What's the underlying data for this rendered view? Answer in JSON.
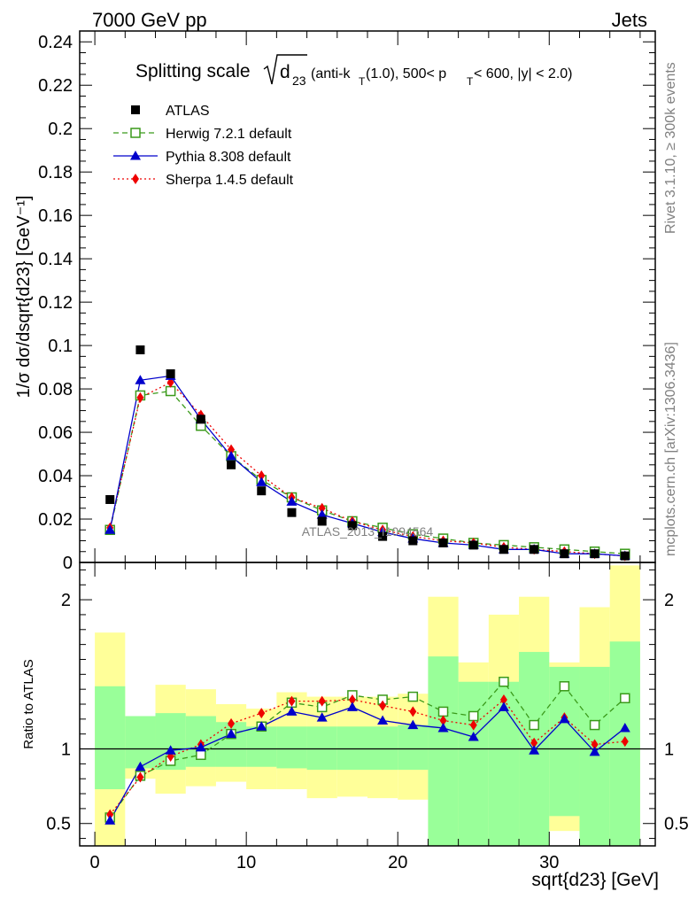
{
  "header": {
    "left": "7000 GeV pp",
    "right": "Jets"
  },
  "side_labels": {
    "rivet": "Rivet 3.1.10, ≥ 300k events",
    "mcplots": "mcplots.cern.ch [arXiv:1306.3436]"
  },
  "watermark": "ATLAS_2013_I1094564",
  "chart_data": [
    {
      "type": "line",
      "panel": "main",
      "title_prefix": "Splitting scale",
      "title_sqrt": "d",
      "title_sqrt_sub": "23",
      "title_rest": "(anti-k",
      "title_sub_T": "T",
      "title_rest2": "(1.0), 500< p",
      "title_rest3": " < 600, |y| < 2.0)",
      "ylabel": "1/σ dσ/dsqrt{d23} [GeV⁻¹]",
      "xlabel": "sqrt{d23} [GeV]",
      "xlim": [
        -1,
        37
      ],
      "ylim": [
        0,
        0.245
      ],
      "yticks": [
        "0",
        "0.02",
        "0.04",
        "0.06",
        "0.08",
        "0.1",
        "0.12",
        "0.14",
        "0.16",
        "0.18",
        "0.2",
        "0.22",
        "0.24"
      ],
      "ytick_values": [
        0,
        0.02,
        0.04,
        0.06,
        0.08,
        0.1,
        0.12,
        0.14,
        0.16,
        0.18,
        0.2,
        0.22,
        0.24
      ],
      "xticks": [
        "0",
        "10",
        "20",
        "30"
      ],
      "xtick_values": [
        0,
        10,
        20,
        30
      ],
      "x": [
        1,
        3,
        5,
        7,
        9,
        11,
        13,
        15,
        17,
        19,
        21,
        23,
        25,
        27,
        29,
        31,
        33,
        35
      ],
      "series": [
        {
          "name": "ATLAS",
          "color": "#000000",
          "marker": "square-filled",
          "line": "none",
          "values": [
            0.029,
            0.098,
            0.087,
            0.066,
            0.045,
            0.033,
            0.023,
            0.019,
            0.017,
            0.012,
            0.01,
            0.009,
            0.008,
            0.006,
            0.006,
            0.004,
            0.004,
            0.003
          ]
        },
        {
          "name": "Herwig 7.2.1 default",
          "color": "#3a9a1a",
          "marker": "square-open",
          "line": "dashed",
          "values": [
            0.015,
            0.077,
            0.079,
            0.063,
            0.049,
            0.038,
            0.03,
            0.024,
            0.019,
            0.016,
            0.013,
            0.011,
            0.009,
            0.008,
            0.007,
            0.006,
            0.005,
            0.004
          ]
        },
        {
          "name": "Pythia 8.308 default",
          "color": "#0000cc",
          "marker": "triangle-filled",
          "line": "solid",
          "values": [
            0.015,
            0.084,
            0.086,
            0.066,
            0.049,
            0.037,
            0.028,
            0.022,
            0.018,
            0.014,
            0.011,
            0.009,
            0.008,
            0.006,
            0.006,
            0.004,
            0.004,
            0.003
          ]
        },
        {
          "name": "Sherpa 1.4.5 default",
          "color": "#ee0000",
          "marker": "diamond-filled",
          "line": "dotted",
          "values": [
            0.016,
            0.076,
            0.083,
            0.068,
            0.052,
            0.04,
            0.03,
            0.025,
            0.019,
            0.015,
            0.012,
            0.01,
            0.009,
            0.007,
            0.006,
            0.005,
            0.004,
            0.003
          ]
        }
      ],
      "legend_position": "top-left"
    },
    {
      "type": "line",
      "panel": "ratio",
      "ylabel": "Ratio to ATLAS",
      "xlim": [
        -1,
        37
      ],
      "ylim": [
        0.35,
        2.25
      ],
      "yticks": [
        "0.5",
        "1",
        "2"
      ],
      "ytick_values": [
        0.5,
        1,
        2
      ],
      "reference_line": 1,
      "x": [
        1,
        3,
        5,
        7,
        9,
        11,
        13,
        15,
        17,
        19,
        21,
        23,
        25,
        27,
        29,
        31,
        33,
        35
      ],
      "bin_edges": [
        0,
        2,
        4,
        6,
        8,
        10,
        12,
        14,
        16,
        18,
        20,
        22,
        24,
        26,
        28,
        30,
        32,
        34,
        36
      ],
      "band_inner": {
        "color": "#99ff99",
        "low": [
          0.73,
          0.87,
          0.86,
          0.88,
          0.88,
          0.88,
          0.87,
          0.86,
          0.86,
          0.86,
          0.86,
          0.35,
          0.35,
          0.35,
          0.35,
          0.55,
          0.35,
          0.35
        ],
        "high": [
          1.42,
          1.22,
          1.24,
          1.22,
          1.18,
          1.15,
          1.15,
          1.15,
          1.15,
          1.15,
          1.16,
          1.62,
          1.45,
          1.45,
          1.65,
          1.55,
          1.55,
          1.72
        ]
      },
      "band_outer": {
        "color": "#ffff99",
        "low": [
          0.35,
          0.8,
          0.7,
          0.75,
          0.78,
          0.73,
          0.73,
          0.67,
          0.68,
          0.67,
          0.66,
          0.35,
          0.35,
          0.35,
          0.35,
          0.45,
          0.35,
          0.35
        ],
        "high": [
          1.78,
          1.16,
          1.43,
          1.4,
          1.3,
          1.27,
          1.38,
          1.35,
          1.35,
          1.35,
          1.37,
          2.02,
          1.58,
          1.9,
          2.02,
          1.58,
          1.95,
          2.23
        ]
      },
      "series": [
        {
          "name": "Herwig 7.2.1 default",
          "color": "#3a9a1a",
          "values": [
            0.54,
            0.82,
            0.92,
            0.96,
            1.1,
            1.15,
            1.31,
            1.28,
            1.36,
            1.33,
            1.35,
            1.25,
            1.22,
            1.45,
            1.16,
            1.42,
            1.16,
            1.34
          ]
        },
        {
          "name": "Pythia 8.308 default",
          "color": "#0000cc",
          "values": [
            0.52,
            0.88,
            0.99,
            1.01,
            1.1,
            1.15,
            1.25,
            1.21,
            1.28,
            1.19,
            1.16,
            1.14,
            1.08,
            1.28,
            0.99,
            1.2,
            0.98,
            1.14
          ]
        },
        {
          "name": "Sherpa 1.4.5 default",
          "color": "#ee0000",
          "values": [
            0.56,
            0.81,
            0.95,
            1.03,
            1.17,
            1.24,
            1.32,
            1.32,
            1.33,
            1.29,
            1.25,
            1.19,
            1.16,
            1.33,
            1.04,
            1.21,
            1.03,
            1.05
          ]
        }
      ]
    }
  ]
}
